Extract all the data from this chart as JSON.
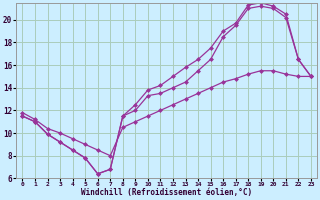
{
  "xlabel": "Windchill (Refroidissement éolien,°C)",
  "bg_color": "#cceeff",
  "grid_color": "#aaccbb",
  "line_color": "#993399",
  "xlim": [
    -0.5,
    23.5
  ],
  "ylim": [
    6,
    21
  ],
  "yticks": [
    6,
    8,
    10,
    12,
    14,
    16,
    18,
    20
  ],
  "xticks": [
    0,
    1,
    2,
    3,
    4,
    5,
    6,
    7,
    8,
    9,
    10,
    11,
    12,
    13,
    14,
    15,
    16,
    17,
    18,
    19,
    20,
    21,
    22,
    23
  ],
  "line1_x": [
    0,
    1,
    2,
    3,
    4,
    5,
    6,
    7,
    8,
    9,
    10,
    11,
    12,
    13,
    14,
    15,
    16,
    17,
    18,
    19,
    20,
    21,
    22,
    23
  ],
  "line1_y": [
    11.5,
    11.0,
    9.9,
    9.2,
    8.5,
    7.8,
    6.4,
    6.8,
    11.5,
    12.0,
    13.3,
    13.5,
    14.0,
    14.5,
    15.5,
    16.5,
    18.5,
    19.5,
    21.0,
    21.2,
    21.0,
    20.2,
    16.5,
    15.0
  ],
  "line2_x": [
    0,
    1,
    2,
    3,
    4,
    5,
    6,
    7,
    8,
    9,
    10,
    11,
    12,
    13,
    14,
    15,
    16,
    17,
    18,
    19,
    20,
    21,
    22,
    23
  ],
  "line2_y": [
    11.5,
    11.0,
    9.9,
    9.2,
    8.5,
    7.8,
    6.4,
    6.8,
    11.5,
    12.5,
    13.8,
    14.2,
    15.0,
    15.8,
    16.5,
    17.5,
    19.0,
    19.7,
    21.3,
    21.5,
    21.2,
    20.5,
    16.5,
    15.0
  ],
  "line3_x": [
    0,
    1,
    2,
    3,
    4,
    5,
    6,
    7,
    8,
    9,
    10,
    11,
    12,
    13,
    14,
    15,
    16,
    17,
    18,
    19,
    20,
    21,
    22,
    23
  ],
  "line3_y": [
    11.8,
    11.2,
    10.4,
    10.0,
    9.5,
    9.0,
    8.5,
    8.0,
    10.5,
    11.0,
    11.5,
    12.0,
    12.5,
    13.0,
    13.5,
    14.0,
    14.5,
    14.8,
    15.2,
    15.5,
    15.5,
    15.2,
    15.0,
    15.0
  ]
}
